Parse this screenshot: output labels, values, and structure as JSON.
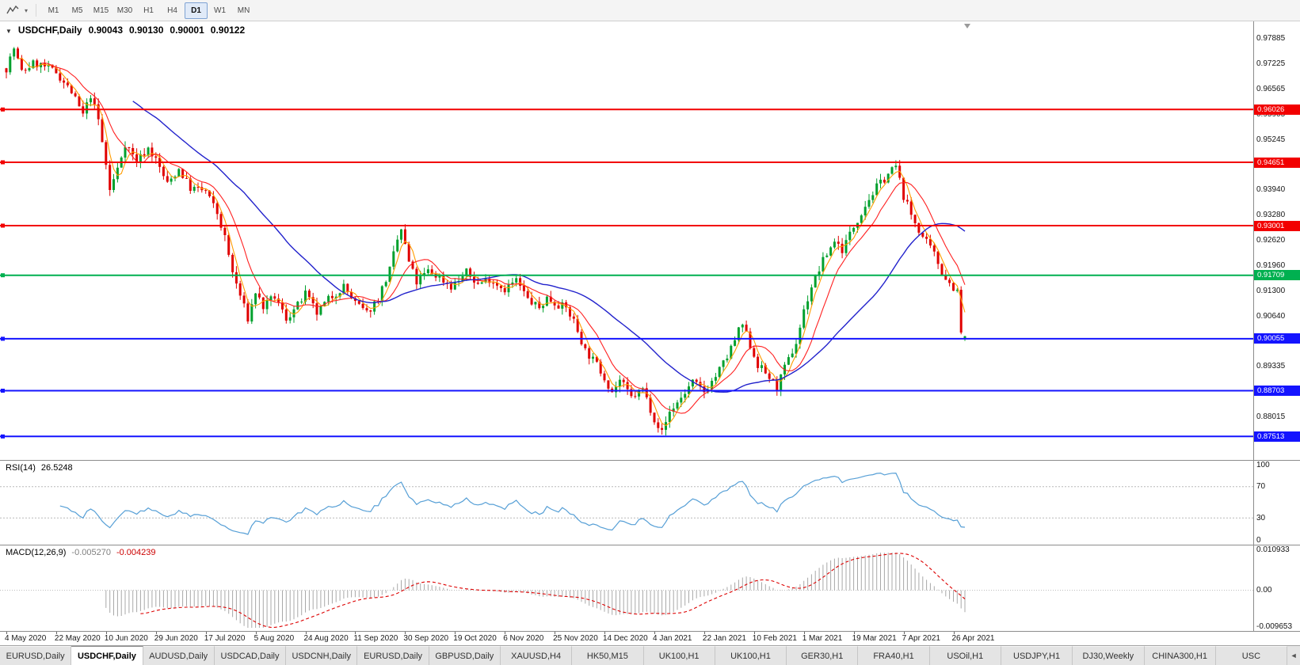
{
  "toolbar": {
    "timeframes": [
      "M1",
      "M5",
      "M15",
      "M30",
      "H1",
      "H4",
      "D1",
      "W1",
      "MN"
    ],
    "active_timeframe": "D1"
  },
  "chart_header": {
    "collapse_icon": "▼",
    "title": "USDCHF,Daily",
    "open": "0.90043",
    "high": "0.90130",
    "low": "0.90001",
    "close": "0.90122"
  },
  "price_axis": {
    "min": 0.869,
    "max": 0.9832,
    "ticks": [
      "0.97885",
      "0.97225",
      "0.96565",
      "0.95905",
      "0.95245",
      "0.93940",
      "0.93280",
      "0.92620",
      "0.91960",
      "0.91300",
      "0.90640",
      "0.89335",
      "0.88015"
    ]
  },
  "levels": [
    {
      "value": 0.96026,
      "label": "0.96026",
      "color": "#f20000",
      "kind": "resistance"
    },
    {
      "value": 0.94651,
      "label": "0.94651",
      "color": "#f20000",
      "kind": "resistance"
    },
    {
      "value": 0.93001,
      "label": "0.93001",
      "color": "#f20000",
      "kind": "resistance"
    },
    {
      "value": 0.91709,
      "label": "0.91709",
      "color": "#00b050",
      "kind": "pivot"
    },
    {
      "value": 0.90055,
      "label": "0.90055",
      "color": "#1414ff",
      "kind": "support"
    },
    {
      "value": 0.88703,
      "label": "0.88703",
      "color": "#1414ff",
      "kind": "support"
    },
    {
      "value": 0.87513,
      "label": "0.87513",
      "color": "#1414ff",
      "kind": "support"
    }
  ],
  "time_axis": [
    "4 May 2020",
    "22 May 2020",
    "10 Jun 2020",
    "29 Jun 2020",
    "17 Jul 2020",
    "5 Aug 2020",
    "24 Aug 2020",
    "11 Sep 2020",
    "30 Sep 2020",
    "19 Oct 2020",
    "6 Nov 2020",
    "25 Nov 2020",
    "14 Dec 2020",
    "4 Jan 2021",
    "22 Jan 2021",
    "10 Feb 2021",
    "1 Mar 2021",
    "19 Mar 2021",
    "7 Apr 2021",
    "26 Apr 2021"
  ],
  "rsi_panel": {
    "name": "RSI(14)",
    "value": "26.5248",
    "ticks": [
      {
        "label": "100",
        "value": 100
      },
      {
        "label": "70",
        "value": 70
      },
      {
        "label": "30",
        "value": 30
      },
      {
        "label": "0",
        "value": 0
      }
    ],
    "guide_levels": [
      70,
      30
    ],
    "line_color": "#569fd6"
  },
  "macd_panel": {
    "name": "MACD(12,26,9)",
    "main_value": "-0.005270",
    "signal_value": "-0.004239",
    "tick_top": "0.010933",
    "tick_zero": "0.00",
    "tick_bottom": "-0.009653",
    "histogram_color": "#a8a8a8",
    "signal_color": "#dd0000"
  },
  "bottom_tabs": {
    "items": [
      "EURUSD,Daily",
      "USDCHF,Daily",
      "AUDUSD,Daily",
      "USDCAD,Daily",
      "USDCNH,Daily",
      "EURUSD,Daily",
      "GBPUSD,Daily",
      "XAUUSD,H4",
      "HK50,M15",
      "UK100,H1",
      "UK100,H1",
      "GER30,H1",
      "FRA40,H1",
      "USOil,H1",
      "USDJPY,H1",
      "DJ30,Weekly",
      "CHINA300,H1",
      "USC"
    ],
    "active_index": 1,
    "scroll_arrow": "◄"
  },
  "chart_data": {
    "type": "candlestick",
    "symbol": "USDCHF",
    "timeframe": "Daily",
    "title": "USDCHF,Daily 0.90043 0.90130 0.90001 0.90122",
    "candle_count": 251,
    "x_label_step": 13,
    "seed": 7,
    "noise_amp": 0.0022,
    "wick_amp": 0.0016,
    "bull_color": "#00a02d",
    "bear_color": "#e00000",
    "last_candle": {
      "o": 0.90043,
      "h": 0.9013,
      "l": 0.90001,
      "c": 0.90122
    },
    "price_waypoints": [
      [
        0,
        0.971
      ],
      [
        2,
        0.9762
      ],
      [
        4,
        0.97
      ],
      [
        7,
        0.9722
      ],
      [
        9,
        0.9718
      ],
      [
        13,
        0.97
      ],
      [
        17,
        0.9648
      ],
      [
        20,
        0.9588
      ],
      [
        22,
        0.964
      ],
      [
        24,
        0.9575
      ],
      [
        26,
        0.9458
      ],
      [
        27,
        0.9392
      ],
      [
        29,
        0.9448
      ],
      [
        31,
        0.9515
      ],
      [
        34,
        0.9468
      ],
      [
        37,
        0.9502
      ],
      [
        39,
        0.9472
      ],
      [
        42,
        0.9408
      ],
      [
        45,
        0.9448
      ],
      [
        48,
        0.9398
      ],
      [
        52,
        0.939
      ],
      [
        55,
        0.9332
      ],
      [
        57,
        0.9268
      ],
      [
        59,
        0.9178
      ],
      [
        61,
        0.9118
      ],
      [
        63,
        0.9058
      ],
      [
        65,
        0.9128
      ],
      [
        67,
        0.9088
      ],
      [
        70,
        0.9115
      ],
      [
        73,
        0.9058
      ],
      [
        76,
        0.9092
      ],
      [
        78,
        0.9122
      ],
      [
        81,
        0.9072
      ],
      [
        84,
        0.9108
      ],
      [
        88,
        0.9142
      ],
      [
        91,
        0.9098
      ],
      [
        94,
        0.9072
      ],
      [
        97,
        0.9112
      ],
      [
        100,
        0.9185
      ],
      [
        102,
        0.9262
      ],
      [
        103,
        0.929
      ],
      [
        105,
        0.9205
      ],
      [
        107,
        0.9152
      ],
      [
        110,
        0.9182
      ],
      [
        113,
        0.9165
      ],
      [
        116,
        0.9142
      ],
      [
        118,
        0.9158
      ],
      [
        120,
        0.9178
      ],
      [
        123,
        0.9148
      ],
      [
        126,
        0.9162
      ],
      [
        130,
        0.9135
      ],
      [
        133,
        0.9158
      ],
      [
        136,
        0.9108
      ],
      [
        139,
        0.9085
      ],
      [
        141,
        0.9112
      ],
      [
        143,
        0.91
      ],
      [
        146,
        0.9085
      ],
      [
        148,
        0.9052
      ],
      [
        151,
        0.8975
      ],
      [
        154,
        0.8938
      ],
      [
        156,
        0.8905
      ],
      [
        158,
        0.8868
      ],
      [
        160,
        0.8898
      ],
      [
        163,
        0.8852
      ],
      [
        166,
        0.8875
      ],
      [
        169,
        0.8798
      ],
      [
        171,
        0.8762
      ],
      [
        173,
        0.8815
      ],
      [
        176,
        0.8852
      ],
      [
        179,
        0.8892
      ],
      [
        182,
        0.8868
      ],
      [
        185,
        0.8908
      ],
      [
        188,
        0.8958
      ],
      [
        191,
        0.9025
      ],
      [
        192,
        0.9042
      ],
      [
        194,
        0.8988
      ],
      [
        196,
        0.8938
      ],
      [
        199,
        0.8905
      ],
      [
        201,
        0.8878
      ],
      [
        203,
        0.8928
      ],
      [
        206,
        0.8995
      ],
      [
        208,
        0.9078
      ],
      [
        210,
        0.9142
      ],
      [
        213,
        0.9208
      ],
      [
        216,
        0.9262
      ],
      [
        218,
        0.9238
      ],
      [
        221,
        0.9298
      ],
      [
        224,
        0.9355
      ],
      [
        227,
        0.94
      ],
      [
        230,
        0.9435
      ],
      [
        232,
        0.9455
      ],
      [
        234,
        0.9378
      ],
      [
        236,
        0.9328
      ],
      [
        239,
        0.927
      ],
      [
        242,
        0.9225
      ],
      [
        244,
        0.918
      ],
      [
        246,
        0.915
      ],
      [
        248,
        0.9128
      ],
      [
        249,
        0.9018
      ],
      [
        250,
        0.9012
      ]
    ],
    "moving_averages": [
      {
        "period": 4,
        "color": "#ff9c00",
        "width": 1.1,
        "name": "ma-fast-orange"
      },
      {
        "period": 10,
        "color": "#ff2020",
        "width": 1.1,
        "name": "ma-mid-red"
      },
      {
        "period": 34,
        "color": "#2222cc",
        "width": 1.4,
        "name": "ma-slow-blue"
      }
    ],
    "rsi": {
      "period": 14,
      "current": 26.5248,
      "range": [
        0,
        100
      ],
      "guide_levels": [
        70,
        30
      ]
    },
    "macd": {
      "fast": 12,
      "slow": 26,
      "signal": 9,
      "current_main": -0.00527,
      "current_signal": -0.004239,
      "range": [
        -0.009653,
        0.010933
      ]
    }
  }
}
